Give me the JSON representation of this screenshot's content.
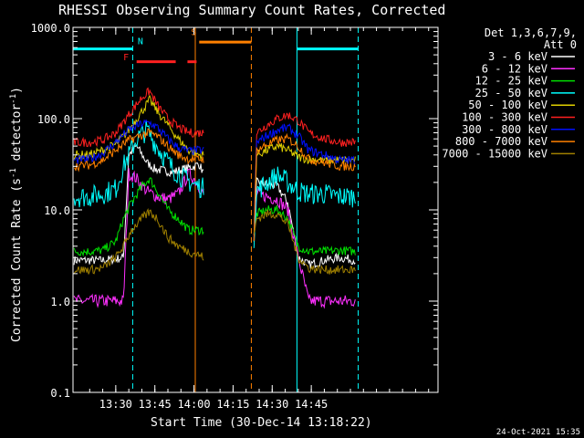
{
  "chart_data": {
    "type": "line",
    "title": "RHESSI Observing Summary Count Rates, Corrected",
    "xlabel": "Start Time (30-Dec-14 13:18:22)",
    "ylabel": "Corrected Count Rate (s",
    "ylabel_sup": "-1",
    "ylabel_mid": " detector",
    "ylabel_end": ")",
    "y_scale": "log",
    "ylim": [
      0.1,
      1000
    ],
    "xlim_minutes": [
      13.6,
      153.6
    ],
    "x_ticks": [
      {
        "label": "13:30",
        "minutes": 30
      },
      {
        "label": "13:45",
        "minutes": 45
      },
      {
        "label": "14:00",
        "minutes": 60
      },
      {
        "label": "14:15",
        "minutes": 75
      },
      {
        "label": "14:30",
        "minutes": 90
      },
      {
        "label": "14:45",
        "minutes": 105
      }
    ],
    "y_ticks": [
      {
        "label": "0.1",
        "value": 0.1
      },
      {
        "label": "1.0",
        "value": 1
      },
      {
        "label": "10.0",
        "value": 10
      },
      {
        "label": "100.0",
        "value": 100
      },
      {
        "label": "1000.0",
        "value": 1000
      }
    ],
    "legend_title": "Det 1,3,6,7,9,",
    "legend_subtitle": "Att 0",
    "legend_position": "right",
    "footer_date": "24-Oct-2021 15:35",
    "annotations": [
      {
        "label": "N",
        "color": "#00ffff",
        "minutes": 37
      },
      {
        "label": "F",
        "color": "#ff2020",
        "minutes": 35
      },
      {
        "label": "S",
        "color": "#ff8000",
        "minutes": 61
      }
    ],
    "markers": {
      "night": {
        "color": "#00ffff",
        "segments": [
          [
            13.6,
            36.5
          ],
          [
            99.5,
            123
          ]
        ],
        "level": 580
      },
      "flare": {
        "color": "#ff2020",
        "segments": [
          [
            38,
            53
          ],
          [
            57.5,
            61
          ]
        ],
        "level": 420
      },
      "saa": {
        "color": "#ff8000",
        "segments": [
          [
            62,
            82
          ]
        ],
        "level": 690
      }
    },
    "vertical_lines": [
      {
        "minutes": 13.6,
        "color": "#00ffff",
        "style": "solid"
      },
      {
        "minutes": 36.5,
        "color": "#00ffff",
        "style": "dashed"
      },
      {
        "minutes": 60.5,
        "color": "#ff8000",
        "style": "solid"
      },
      {
        "minutes": 82,
        "color": "#ff8000",
        "style": "dashed"
      },
      {
        "minutes": 99.5,
        "color": "#00ffff",
        "style": "solid"
      },
      {
        "minutes": 123,
        "color": "#00ffff",
        "style": "dashed"
      }
    ],
    "series": [
      {
        "name": "3 - 6 keV",
        "color": "#ffffff",
        "seg1": [
          [
            14,
            2.8
          ],
          [
            25,
            2.8
          ],
          [
            30,
            2.9
          ],
          [
            33,
            3.0
          ],
          [
            35,
            40
          ],
          [
            38,
            50
          ],
          [
            42,
            33
          ],
          [
            45,
            28
          ],
          [
            48,
            27
          ],
          [
            52,
            26
          ],
          [
            56,
            28
          ],
          [
            60,
            30
          ],
          [
            62,
            32
          ],
          [
            64,
            24
          ]
        ],
        "seg2": [
          [
            83,
            5
          ],
          [
            84,
            20
          ],
          [
            88,
            19
          ],
          [
            92,
            18
          ],
          [
            96,
            12
          ],
          [
            100,
            3
          ],
          [
            104,
            2.5
          ],
          [
            110,
            2.8
          ],
          [
            116,
            3.0
          ],
          [
            122,
            2.8
          ]
        ]
      },
      {
        "name": "6 - 12 keV",
        "color": "#ff30ff",
        "seg1": [
          [
            14,
            1.0
          ],
          [
            20,
            1.0
          ],
          [
            25,
            1.0
          ],
          [
            30,
            1.0
          ],
          [
            33,
            1.0
          ],
          [
            35,
            25
          ],
          [
            38,
            22
          ],
          [
            42,
            16
          ],
          [
            46,
            14
          ],
          [
            50,
            13
          ],
          [
            54,
            15
          ],
          [
            58,
            25
          ],
          [
            60,
            22
          ],
          [
            62,
            18
          ],
          [
            64,
            15
          ]
        ],
        "seg2": [
          [
            83,
            5
          ],
          [
            84,
            15
          ],
          [
            88,
            14
          ],
          [
            92,
            13
          ],
          [
            96,
            10
          ],
          [
            100,
            3
          ],
          [
            104,
            1
          ],
          [
            110,
            1
          ],
          [
            116,
            1
          ],
          [
            122,
            1
          ]
        ]
      },
      {
        "name": "12 - 25 keV",
        "color": "#00e000",
        "seg1": [
          [
            14,
            3.5
          ],
          [
            20,
            3.5
          ],
          [
            25,
            3.6
          ],
          [
            30,
            4.5
          ],
          [
            33,
            8
          ],
          [
            36,
            12
          ],
          [
            40,
            18
          ],
          [
            43,
            22
          ],
          [
            46,
            16
          ],
          [
            50,
            10
          ],
          [
            54,
            8
          ],
          [
            58,
            6
          ],
          [
            62,
            6
          ],
          [
            64,
            6
          ]
        ],
        "seg2": [
          [
            83,
            5
          ],
          [
            84,
            9
          ],
          [
            88,
            10
          ],
          [
            92,
            10
          ],
          [
            96,
            8
          ],
          [
            100,
            4
          ],
          [
            104,
            3.5
          ],
          [
            110,
            3.5
          ],
          [
            116,
            3.6
          ],
          [
            122,
            3.5
          ]
        ]
      },
      {
        "name": "25 - 50 keV",
        "color": "#00ffff",
        "seg1": [
          [
            14,
            14
          ],
          [
            20,
            14
          ],
          [
            25,
            15
          ],
          [
            30,
            17
          ],
          [
            33,
            30
          ],
          [
            38,
            60
          ],
          [
            42,
            75
          ],
          [
            44,
            60
          ],
          [
            48,
            40
          ],
          [
            52,
            28
          ],
          [
            56,
            22
          ],
          [
            60,
            19
          ],
          [
            64,
            17
          ]
        ],
        "seg2": [
          [
            83,
            5
          ],
          [
            84,
            16
          ],
          [
            88,
            20
          ],
          [
            92,
            24
          ],
          [
            96,
            20
          ],
          [
            100,
            16
          ],
          [
            104,
            15
          ],
          [
            110,
            15
          ],
          [
            116,
            14
          ],
          [
            122,
            14
          ]
        ]
      },
      {
        "name": "50 - 100 keV",
        "color": "#e0d000",
        "seg1": [
          [
            14,
            40
          ],
          [
            20,
            40
          ],
          [
            25,
            45
          ],
          [
            30,
            52
          ],
          [
            35,
            75
          ],
          [
            40,
            120
          ],
          [
            43,
            160
          ],
          [
            46,
            120
          ],
          [
            50,
            85
          ],
          [
            54,
            60
          ],
          [
            58,
            45
          ],
          [
            62,
            40
          ],
          [
            64,
            40
          ]
        ],
        "seg2": [
          [
            83,
            5
          ],
          [
            84,
            40
          ],
          [
            88,
            45
          ],
          [
            92,
            50
          ],
          [
            96,
            45
          ],
          [
            100,
            38
          ],
          [
            104,
            36
          ],
          [
            110,
            35
          ],
          [
            116,
            35
          ],
          [
            122,
            35
          ]
        ]
      },
      {
        "name": "100 - 300 keV",
        "color": "#ff2020",
        "seg1": [
          [
            14,
            55
          ],
          [
            20,
            55
          ],
          [
            25,
            58
          ],
          [
            30,
            70
          ],
          [
            35,
            110
          ],
          [
            40,
            170
          ],
          [
            43,
            200
          ],
          [
            46,
            140
          ],
          [
            50,
            100
          ],
          [
            54,
            80
          ],
          [
            58,
            70
          ],
          [
            62,
            70
          ],
          [
            64,
            70
          ]
        ],
        "seg2": [
          [
            83,
            5
          ],
          [
            84,
            70
          ],
          [
            88,
            85
          ],
          [
            92,
            100
          ],
          [
            96,
            110
          ],
          [
            100,
            95
          ],
          [
            104,
            70
          ],
          [
            110,
            60
          ],
          [
            116,
            55
          ],
          [
            122,
            55
          ]
        ]
      },
      {
        "name": "300 - 800 keV",
        "color": "#0010ff",
        "seg1": [
          [
            14,
            35
          ],
          [
            20,
            36
          ],
          [
            25,
            42
          ],
          [
            30,
            55
          ],
          [
            35,
            75
          ],
          [
            40,
            88
          ],
          [
            43,
            90
          ],
          [
            46,
            80
          ],
          [
            50,
            60
          ],
          [
            54,
            48
          ],
          [
            58,
            44
          ],
          [
            62,
            45
          ],
          [
            64,
            45
          ]
        ],
        "seg2": [
          [
            83,
            5
          ],
          [
            84,
            55
          ],
          [
            88,
            65
          ],
          [
            92,
            75
          ],
          [
            96,
            80
          ],
          [
            100,
            65
          ],
          [
            104,
            45
          ],
          [
            110,
            40
          ],
          [
            116,
            35
          ],
          [
            122,
            35
          ]
        ]
      },
      {
        "name": "800 - 7000 keV",
        "color": "#ff8000",
        "seg1": [
          [
            14,
            30
          ],
          [
            20,
            31
          ],
          [
            25,
            35
          ],
          [
            30,
            45
          ],
          [
            35,
            58
          ],
          [
            40,
            66
          ],
          [
            43,
            70
          ],
          [
            46,
            64
          ],
          [
            50,
            50
          ],
          [
            54,
            40
          ],
          [
            58,
            36
          ],
          [
            62,
            36
          ],
          [
            64,
            36
          ]
        ],
        "seg2": [
          [
            83,
            5
          ],
          [
            84,
            45
          ],
          [
            88,
            52
          ],
          [
            92,
            58
          ],
          [
            96,
            60
          ],
          [
            100,
            50
          ],
          [
            104,
            36
          ],
          [
            110,
            33
          ],
          [
            116,
            30
          ],
          [
            122,
            30
          ]
        ]
      },
      {
        "name": "7000 - 15000 keV",
        "color": "#a08000",
        "seg1": [
          [
            14,
            2.2
          ],
          [
            20,
            2.2
          ],
          [
            25,
            2.3
          ],
          [
            30,
            3.0
          ],
          [
            33,
            4
          ],
          [
            36,
            6
          ],
          [
            40,
            8
          ],
          [
            43,
            9.5
          ],
          [
            46,
            8
          ],
          [
            50,
            5
          ],
          [
            54,
            4
          ],
          [
            58,
            3.5
          ],
          [
            62,
            3.2
          ],
          [
            64,
            3
          ]
        ],
        "seg2": [
          [
            83,
            5
          ],
          [
            84,
            8
          ],
          [
            88,
            9
          ],
          [
            92,
            9
          ],
          [
            96,
            7
          ],
          [
            100,
            3
          ],
          [
            104,
            2.3
          ],
          [
            110,
            2.2
          ],
          [
            116,
            2.2
          ],
          [
            122,
            2.2
          ]
        ]
      }
    ]
  }
}
